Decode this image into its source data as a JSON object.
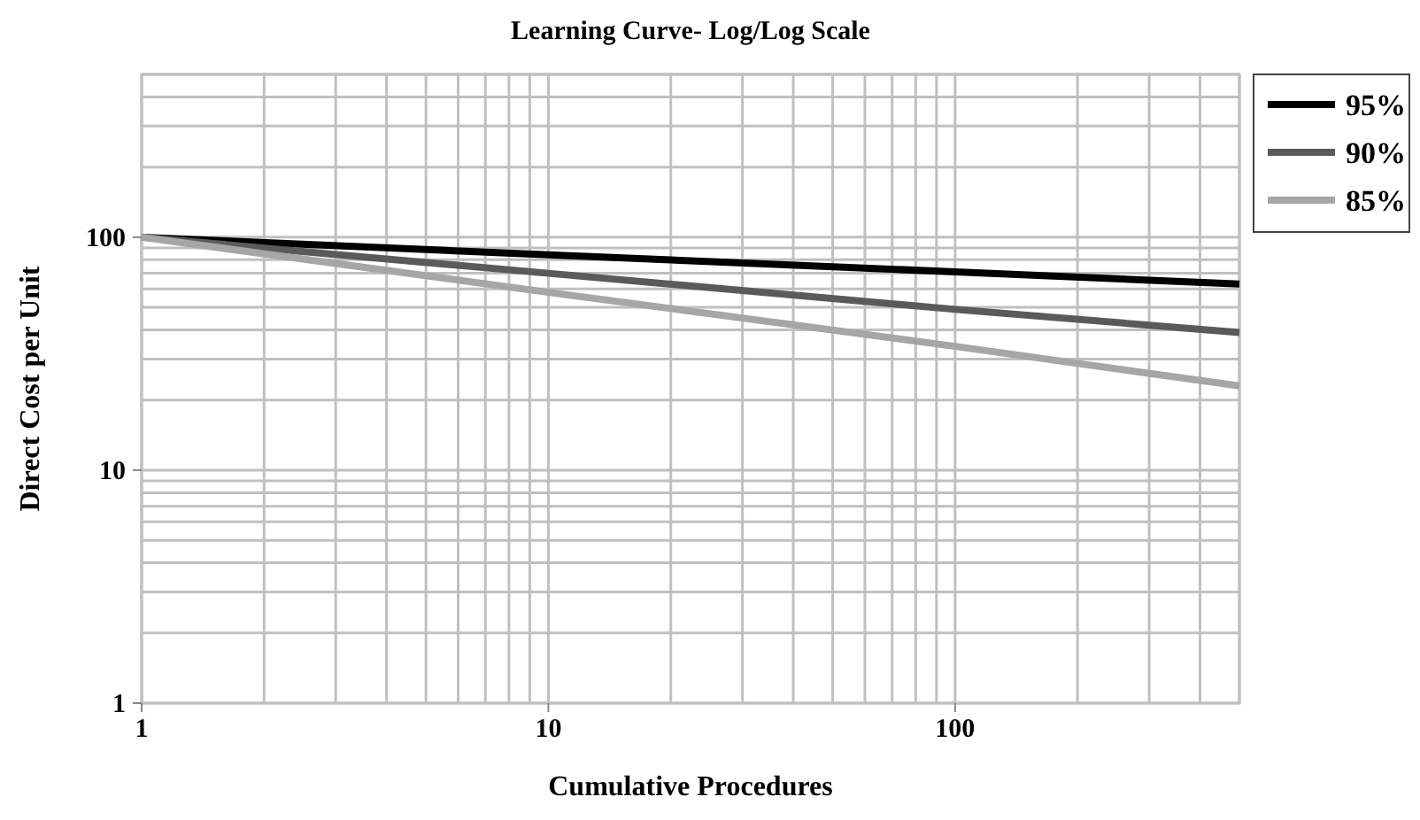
{
  "chart_data": {
    "type": "line",
    "title": "Learning Curve- Log/Log Scale",
    "xlabel": "Cumulative Procedures",
    "ylabel": "Direct Cost per Unit",
    "log": "xy",
    "grid": true,
    "legend": "right",
    "marker": "none",
    "line_style": "solid",
    "xlim": [
      1,
      500
    ],
    "ylim": [
      1,
      500
    ],
    "xticks": [
      1,
      {
        "value": 2,
        "label": null
      },
      {
        "value": 3,
        "label": null
      },
      {
        "value": 4,
        "label": null
      },
      {
        "value": 5,
        "label": null
      },
      {
        "value": 6,
        "label": null
      },
      {
        "value": 7,
        "label": null
      },
      {
        "value": 8,
        "label": null
      },
      {
        "value": 9,
        "label": null
      },
      10,
      {
        "value": 20,
        "label": null
      },
      {
        "value": 30,
        "label": null
      },
      {
        "value": 40,
        "label": null
      },
      {
        "value": 50,
        "label": null
      },
      {
        "value": 60,
        "label": null
      },
      {
        "value": 70,
        "label": null
      },
      {
        "value": 80,
        "label": null
      },
      {
        "value": 90,
        "label": null
      },
      100,
      {
        "value": 200,
        "label": null
      },
      {
        "value": 300,
        "label": null
      },
      {
        "value": 400,
        "label": null
      },
      {
        "value": 500,
        "label": null
      }
    ],
    "yticks": [
      1,
      {
        "value": 2,
        "label": null
      },
      {
        "value": 3,
        "label": null
      },
      {
        "value": 4,
        "label": null
      },
      {
        "value": 5,
        "label": null
      },
      {
        "value": 6,
        "label": null
      },
      {
        "value": 7,
        "label": null
      },
      {
        "value": 8,
        "label": null
      },
      {
        "value": 9,
        "label": null
      },
      10,
      {
        "value": 20,
        "label": null
      },
      {
        "value": 30,
        "label": null
      },
      {
        "value": 40,
        "label": null
      },
      {
        "value": 50,
        "label": null
      },
      {
        "value": 60,
        "label": null
      },
      {
        "value": 70,
        "label": null
      },
      {
        "value": 80,
        "label": null
      },
      {
        "value": 90,
        "label": null
      },
      100,
      {
        "value": 200,
        "label": null
      },
      {
        "value": 300,
        "label": null
      },
      {
        "value": 400,
        "label": null
      },
      {
        "value": 500,
        "label": null
      }
    ],
    "x": [
      1,
      10,
      100,
      500
    ],
    "series": [
      {
        "name": "95%",
        "color": "#000000",
        "values": [
          100,
          84,
          71,
          63
        ]
      },
      {
        "name": "90%",
        "color": "#5a5a5a",
        "values": [
          100,
          70,
          49,
          39
        ]
      },
      {
        "name": "85%",
        "color": "#a6a6a6",
        "values": [
          100,
          58,
          34,
          23
        ]
      }
    ]
  }
}
